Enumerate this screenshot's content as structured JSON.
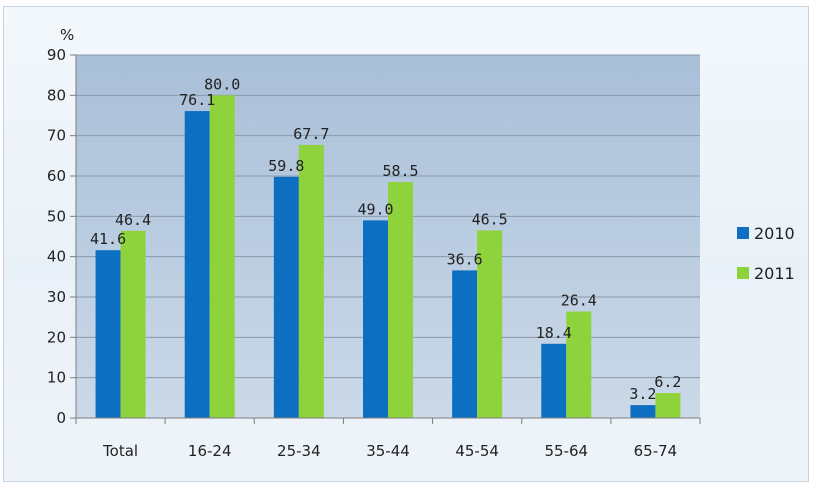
{
  "chart_data": {
    "type": "bar",
    "title": "",
    "xlabel": "",
    "ylabel": "%",
    "ylim": [
      0,
      90
    ],
    "yticks": [
      0,
      10,
      20,
      30,
      40,
      50,
      60,
      70,
      80,
      90
    ],
    "grid": true,
    "legend_position": "right",
    "categories": [
      "Total",
      "16-24",
      "25-34",
      "35-44",
      "45-54",
      "55-64",
      "65-74"
    ],
    "series": [
      {
        "name": "2010",
        "color": "#0d6fc1",
        "values": [
          41.6,
          76.1,
          59.8,
          49.0,
          36.6,
          18.4,
          3.2
        ],
        "labels": [
          "41.6",
          "76.1",
          "59.8",
          "49.0",
          "36.6",
          "18.4",
          "3.2"
        ]
      },
      {
        "name": "2011",
        "color": "#8ed23c",
        "values": [
          46.4,
          80.0,
          67.7,
          58.5,
          46.5,
          26.4,
          6.2
        ],
        "labels": [
          "46.4",
          "80.0",
          "67.7",
          "58.5",
          "46.5",
          "26.4",
          "6.2"
        ]
      }
    ]
  }
}
